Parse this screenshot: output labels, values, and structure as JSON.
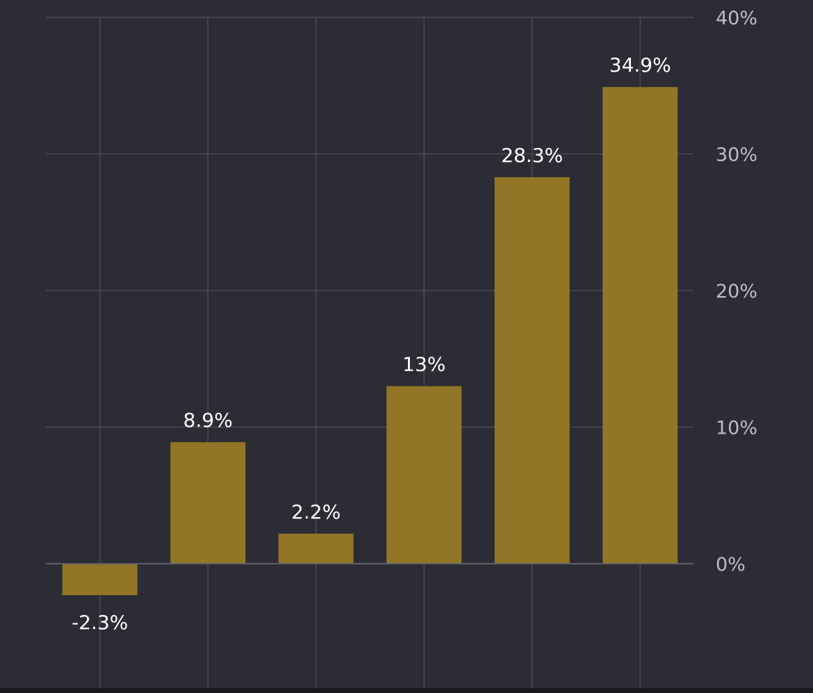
{
  "chart_data": {
    "type": "bar",
    "categories": [
      "",
      "",
      "",
      "",
      "",
      ""
    ],
    "values": [
      -2.3,
      8.9,
      2.2,
      13,
      28.3,
      34.9
    ],
    "value_labels": [
      "-2.3%",
      "8.9%",
      "2.2%",
      "13%",
      "28.3%",
      "34.9%"
    ],
    "y_ticks": [
      {
        "value": 0,
        "label": "0%"
      },
      {
        "value": 10,
        "label": "10%"
      },
      {
        "value": 20,
        "label": "20%"
      },
      {
        "value": 30,
        "label": "30%"
      },
      {
        "value": 40,
        "label": "40%"
      }
    ],
    "title": "",
    "xlabel": "",
    "ylabel": "",
    "ylim": [
      -9,
      40
    ],
    "grid": true,
    "y_axis_position": "right",
    "colors": {
      "background": "#2c2c35",
      "bar": "#927526",
      "grid": "#4a4a55",
      "baseline": "#5e5e6a",
      "tick_label": "#bdbdc4",
      "data_label": "#ffffff"
    }
  }
}
